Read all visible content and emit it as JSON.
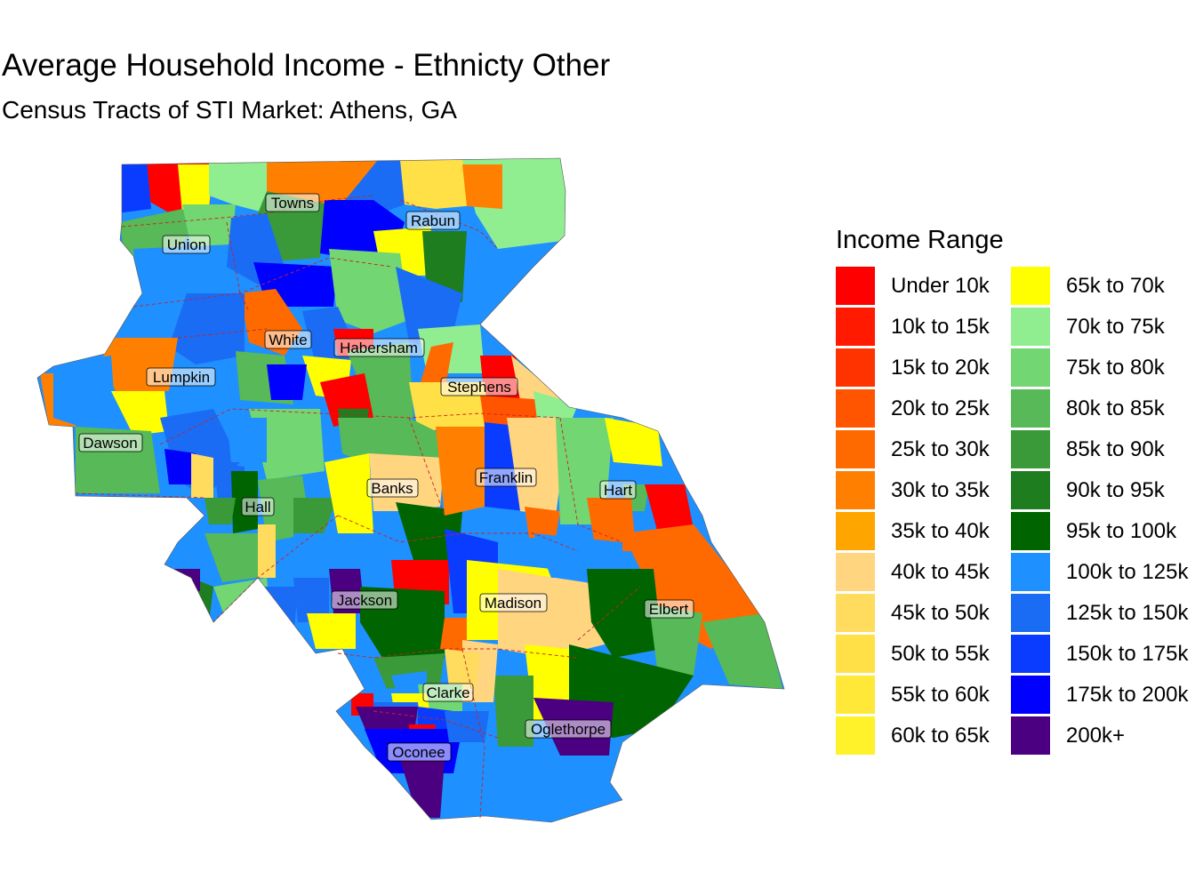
{
  "title": "Average Household Income - Ethnicty Other",
  "subtitle": "Census Tracts of STI Market: Athens, GA",
  "legend": {
    "title": "Income Range",
    "items": [
      {
        "label": "Under 10k",
        "color": "#ff0000"
      },
      {
        "label": "10k to 15k",
        "color": "#ff1a00"
      },
      {
        "label": "15k to 20k",
        "color": "#ff3300"
      },
      {
        "label": "20k to 25k",
        "color": "#ff5500"
      },
      {
        "label": "25k to 30k",
        "color": "#ff6a00"
      },
      {
        "label": "30k to 35k",
        "color": "#ff8000"
      },
      {
        "label": "35k to 40k",
        "color": "#ffa500"
      },
      {
        "label": "40k to 45k",
        "color": "#ffd580"
      },
      {
        "label": "45k to 50k",
        "color": "#ffdb5e"
      },
      {
        "label": "50k to 55k",
        "color": "#ffe046"
      },
      {
        "label": "55k to 60k",
        "color": "#ffe838"
      },
      {
        "label": "60k to 65k",
        "color": "#fff22a"
      },
      {
        "label": "65k to 70k",
        "color": "#ffff00"
      },
      {
        "label": "70k to 75k",
        "color": "#90ee90"
      },
      {
        "label": "75k to 80k",
        "color": "#72d672"
      },
      {
        "label": "80k to 85k",
        "color": "#57b957"
      },
      {
        "label": "85k to 90k",
        "color": "#3a9a3a"
      },
      {
        "label": "90k to 95k",
        "color": "#1e7d1e"
      },
      {
        "label": "95k to 100k",
        "color": "#006400"
      },
      {
        "label": "100k to 125k",
        "color": "#1e90ff"
      },
      {
        "label": "125k to 150k",
        "color": "#1a6cf5"
      },
      {
        "label": "150k to 175k",
        "color": "#0a3cff"
      },
      {
        "label": "175k to 200k",
        "color": "#0000ff"
      },
      {
        "label": "200k+",
        "color": "#4b0082"
      }
    ]
  },
  "counties": [
    "Towns",
    "Rabun",
    "Union",
    "White",
    "Habersham",
    "Lumpkin",
    "Stephens",
    "Dawson",
    "Franklin",
    "Banks",
    "Hart",
    "Hall",
    "Jackson",
    "Madison",
    "Elbert",
    "Clarke",
    "Oglethorpe",
    "Oconee"
  ]
}
